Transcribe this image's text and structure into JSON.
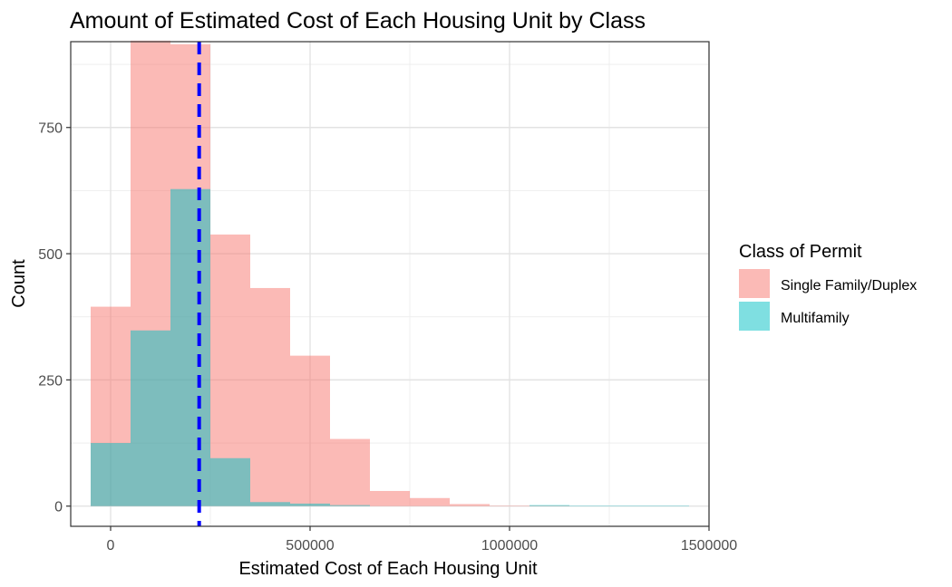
{
  "chart_data": {
    "type": "bar",
    "title": "Amount of Estimated Cost of Each Housing Unit by Class",
    "xlabel": "Estimated Cost of Each Housing Unit",
    "ylabel": "Count",
    "xlim": [
      -100000,
      1500000
    ],
    "ylim": [
      -40,
      920
    ],
    "xticks": [
      0,
      500000,
      1000000,
      1500000
    ],
    "xtick_labels": [
      "0",
      "500000",
      "1000000",
      "1500000"
    ],
    "yticks": [
      0,
      250,
      500,
      750
    ],
    "ytick_labels": [
      "0",
      "250",
      "500",
      "750"
    ],
    "grid": true,
    "bin_width": 100000,
    "bin_centers": [
      0,
      100000,
      200000,
      300000,
      400000,
      500000,
      600000,
      700000,
      800000,
      900000,
      1000000,
      1100000,
      1200000,
      1300000,
      1400000
    ],
    "series": [
      {
        "name": "Single Family/Duplex",
        "color": "#F8766D",
        "values": [
          395,
          922,
          915,
          538,
          432,
          298,
          133,
          30,
          16,
          4,
          1,
          1,
          0,
          0,
          0
        ]
      },
      {
        "name": "Multifamily",
        "color": "#00BFC4",
        "values": [
          125,
          348,
          628,
          95,
          8,
          5,
          2,
          0,
          0,
          0,
          0,
          2,
          1,
          1,
          1
        ]
      }
    ],
    "overlap_color": "#7fbcbd",
    "reference_line": {
      "x": 222000,
      "color": "#0000FF",
      "style": "dashed"
    },
    "legend": {
      "title": "Class of Permit",
      "position": "right"
    }
  }
}
